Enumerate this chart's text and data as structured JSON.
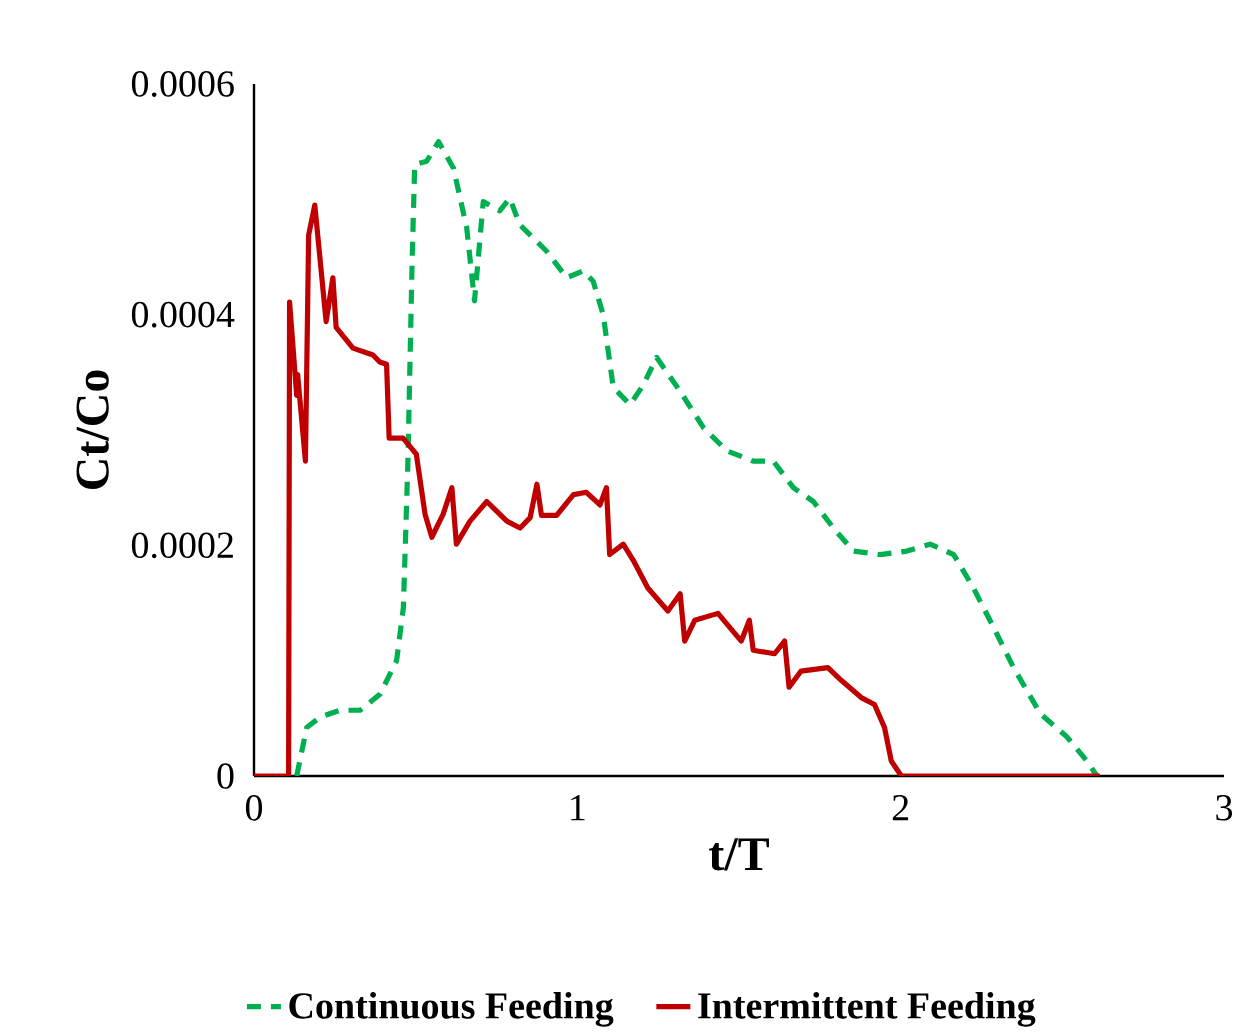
{
  "chart_data": {
    "type": "line",
    "xlabel": "t/T",
    "ylabel": "Ct/Co",
    "xlim": [
      0,
      3
    ],
    "xticks": [
      0,
      1,
      2,
      3
    ],
    "ylim": [
      0,
      0.0006
    ],
    "yticks": [
      0,
      0.0002,
      0.0004,
      0.0006
    ],
    "grid": false,
    "legend": "bottom",
    "marker": "none",
    "series": [
      {
        "name": "Continuous Feeding",
        "color": "#00b050",
        "line_style": "dashed",
        "x": [
          0.132,
          0.163,
          0.204,
          0.266,
          0.328,
          0.39,
          0.441,
          0.462,
          0.476,
          0.489,
          0.497,
          0.534,
          0.571,
          0.617,
          0.658,
          0.682,
          0.709,
          0.76,
          0.791,
          0.822,
          0.905,
          0.967,
          1.018,
          1.049,
          1.08,
          1.111,
          1.163,
          1.204,
          1.245,
          1.317,
          1.39,
          1.462,
          1.544,
          1.606,
          1.668,
          1.73,
          1.792,
          1.854,
          1.936,
          2.019,
          2.091,
          2.164,
          2.225,
          2.287,
          2.349,
          2.432,
          2.514,
          2.576,
          2.607
        ],
        "values": [
          0,
          4.2e-05,
          5.1e-05,
          5.7e-05,
          5.7e-05,
          7.1e-05,
          0.0001,
          0.000146,
          0.000273,
          0.000446,
          0.00053,
          0.000533,
          0.00055,
          0.000527,
          0.000475,
          0.000412,
          0.000498,
          0.00049,
          0.000501,
          0.000478,
          0.000455,
          0.000432,
          0.000438,
          0.000429,
          0.0004,
          0.000337,
          0.000322,
          0.000339,
          0.000363,
          0.000334,
          0.000302,
          0.000282,
          0.000273,
          0.000273,
          0.00025,
          0.000238,
          0.000215,
          0.000195,
          0.000192,
          0.000195,
          0.000201,
          0.000192,
          0.000163,
          0.000129,
          9.4e-05,
          5.4e-05,
          3.4e-05,
          1.3e-05,
          0
        ]
      },
      {
        "name": "Intermittent Feeding",
        "color": "#c00000",
        "line_style": "solid",
        "x": [
          0,
          0.107,
          0.11,
          0.132,
          0.135,
          0.159,
          0.169,
          0.188,
          0.223,
          0.244,
          0.254,
          0.306,
          0.368,
          0.389,
          0.41,
          0.418,
          0.461,
          0.502,
          0.529,
          0.55,
          0.585,
          0.612,
          0.626,
          0.668,
          0.72,
          0.782,
          0.823,
          0.854,
          0.875,
          0.889,
          0.936,
          0.988,
          1.028,
          1.07,
          1.09,
          1.1,
          1.142,
          1.173,
          1.218,
          1.28,
          1.318,
          1.332,
          1.363,
          1.435,
          1.507,
          1.532,
          1.544,
          1.61,
          1.641,
          1.655,
          1.692,
          1.775,
          1.816,
          1.878,
          1.919,
          1.95,
          1.971,
          2.002,
          2.616
        ],
        "values": [
          0,
          0,
          0.000411,
          0.00033,
          0.000348,
          0.000273,
          0.000469,
          0.000495,
          0.000394,
          0.000432,
          0.000389,
          0.000371,
          0.000365,
          0.000359,
          0.000357,
          0.000293,
          0.000293,
          0.000279,
          0.000227,
          0.000207,
          0.000227,
          0.00025,
          0.000201,
          0.000221,
          0.000238,
          0.000221,
          0.000215,
          0.000224,
          0.000253,
          0.000226,
          0.000226,
          0.000244,
          0.000246,
          0.000235,
          0.00025,
          0.000192,
          0.000201,
          0.000187,
          0.000163,
          0.000143,
          0.000158,
          0.000117,
          0.000135,
          0.000141,
          0.000117,
          0.000135,
          0.000109,
          0.000106,
          0.000117,
          7.7e-05,
          9.1e-05,
          9.4e-05,
          8.3e-05,
          6.8e-05,
          6.2e-05,
          4.2e-05,
          1.3e-05,
          0,
          0
        ]
      }
    ]
  }
}
